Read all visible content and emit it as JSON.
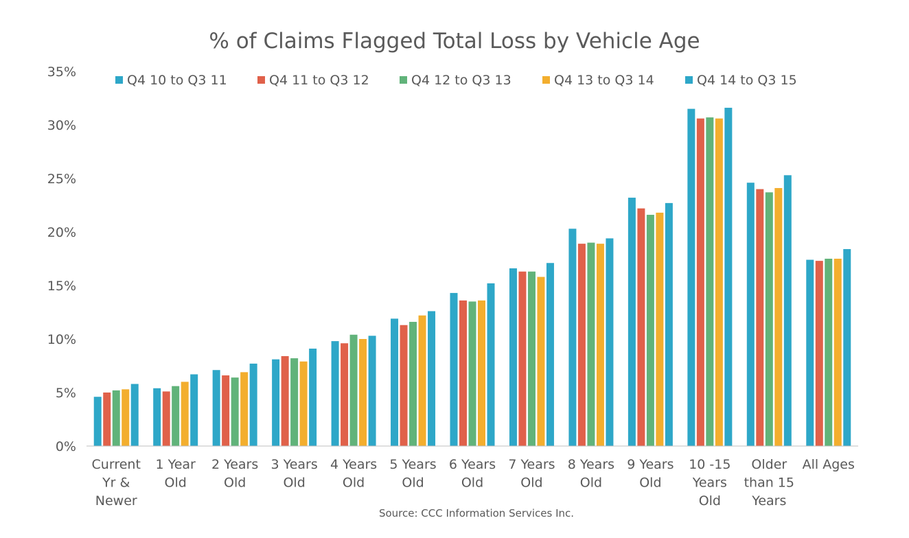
{
  "chart_data": {
    "type": "bar",
    "title": "% of Claims Flagged Total Loss by Vehicle Age",
    "source": "Source: CCC Information Services Inc.",
    "xlabel": "",
    "ylabel": "",
    "ylim": [
      0,
      35
    ],
    "y_ticks": [
      "0%",
      "5%",
      "10%",
      "15%",
      "20%",
      "25%",
      "30%",
      "35%"
    ],
    "y_tick_values": [
      0,
      5,
      10,
      15,
      20,
      25,
      30,
      35
    ],
    "grid": false,
    "legend_position": "top",
    "categories": [
      [
        "Current",
        "Yr &",
        "Newer"
      ],
      [
        "1 Year",
        "Old"
      ],
      [
        "2 Years",
        "Old"
      ],
      [
        "3 Years",
        "Old"
      ],
      [
        "4 Years",
        "Old"
      ],
      [
        "5 Years",
        "Old"
      ],
      [
        "6 Years",
        "Old"
      ],
      [
        "7 Years",
        "Old"
      ],
      [
        "8 Years",
        "Old"
      ],
      [
        "9 Years",
        "Old"
      ],
      [
        "10 -15",
        "Years",
        "Old"
      ],
      [
        "Older",
        "than 15",
        "Years"
      ],
      [
        "All Ages"
      ]
    ],
    "series": [
      {
        "name": "Q4 10 to Q3 11",
        "color": "#2ea7c8",
        "values": [
          4.6,
          5.4,
          7.1,
          8.1,
          9.8,
          11.9,
          14.3,
          16.6,
          20.3,
          23.2,
          31.5,
          24.6,
          17.4
        ]
      },
      {
        "name": "Q4 11 to Q3 12",
        "color": "#e0614a",
        "values": [
          5.0,
          5.1,
          6.6,
          8.4,
          9.6,
          11.3,
          13.6,
          16.3,
          18.9,
          22.2,
          30.6,
          24.0,
          17.3
        ]
      },
      {
        "name": "Q4 12 to Q3 13",
        "color": "#61b37a",
        "values": [
          5.2,
          5.6,
          6.4,
          8.2,
          10.4,
          11.6,
          13.5,
          16.3,
          19.0,
          21.6,
          30.7,
          23.7,
          17.5
        ]
      },
      {
        "name": "Q4 13 to Q3 14",
        "color": "#f3ae2e",
        "values": [
          5.3,
          6.0,
          6.9,
          7.9,
          10.0,
          12.2,
          13.6,
          15.8,
          18.9,
          21.8,
          30.6,
          24.1,
          17.5
        ]
      },
      {
        "name": "Q4 14 to Q3 15",
        "color": "#2ea7c8",
        "values": [
          5.8,
          6.7,
          7.7,
          9.1,
          10.3,
          12.6,
          15.2,
          17.1,
          19.4,
          22.7,
          31.6,
          25.3,
          18.4
        ]
      }
    ]
  },
  "colors": {
    "axis": "#bfbfbf",
    "text": "#595959",
    "title": "#5a5a5a"
  }
}
